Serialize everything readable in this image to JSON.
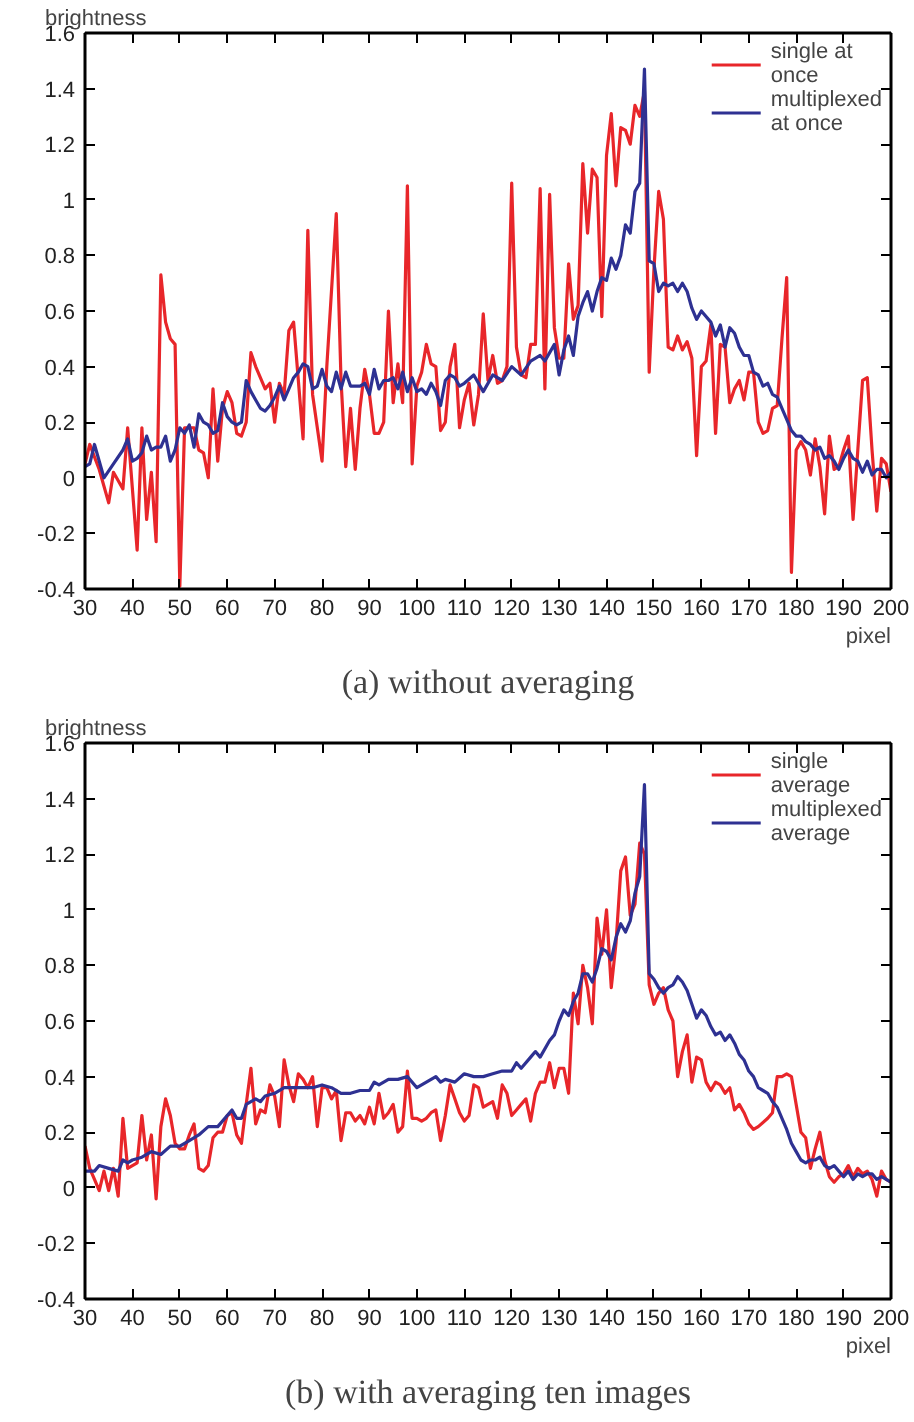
{
  "chart_data": [
    {
      "type": "line",
      "title": "(a) without averaging",
      "xlabel": "pixel",
      "ylabel": "brightness",
      "xlim": [
        30,
        200
      ],
      "ylim": [
        -0.4,
        1.6
      ],
      "xticks": [
        30,
        40,
        50,
        60,
        70,
        80,
        90,
        100,
        110,
        120,
        130,
        140,
        150,
        160,
        170,
        180,
        190,
        200
      ],
      "yticks": [
        -0.4,
        -0.2,
        0,
        0.2,
        0.4,
        0.6,
        0.8,
        1,
        1.2,
        1.4,
        1.6
      ],
      "grid": false,
      "legend": "top right",
      "marker": "none",
      "line_style": "solid",
      "series": [
        {
          "name": "single at once",
          "color": "#e8262a",
          "x": [
            30,
            31,
            33,
            35,
            36,
            38,
            39,
            41,
            42,
            43,
            44,
            45,
            46,
            47,
            48,
            49,
            50,
            51,
            53,
            54,
            55,
            56,
            57,
            58,
            59,
            60,
            61,
            62,
            63,
            64,
            65,
            66,
            68,
            69,
            70,
            71,
            72,
            73,
            74,
            76,
            77,
            78,
            80,
            81,
            83,
            84,
            85,
            86,
            87,
            88,
            89,
            90,
            91,
            92,
            93,
            94,
            95,
            96,
            97,
            98,
            99,
            100,
            101,
            102,
            103,
            104,
            105,
            106,
            107,
            108,
            109,
            110,
            111,
            112,
            113,
            114,
            115,
            116,
            117,
            118,
            119,
            120,
            121,
            122,
            123,
            124,
            125,
            126,
            127,
            128,
            129,
            130,
            131,
            132,
            133,
            134,
            135,
            136,
            137,
            138,
            139,
            140,
            141,
            142,
            143,
            144,
            145,
            146,
            147,
            148,
            149,
            150,
            151,
            152,
            153,
            154,
            155,
            156,
            157,
            158,
            159,
            160,
            161,
            162,
            163,
            164,
            165,
            166,
            167,
            168,
            169,
            170,
            171,
            172,
            173,
            174,
            175,
            176,
            177,
            178,
            179,
            180,
            181,
            182,
            183,
            184,
            185,
            186,
            187,
            188,
            189,
            190,
            191,
            192,
            193,
            194,
            195,
            196,
            197,
            198,
            199,
            200
          ],
          "values": [
            0.05,
            0.12,
            0.03,
            -0.09,
            0.02,
            -0.04,
            0.18,
            -0.26,
            0.18,
            -0.15,
            0.02,
            -0.23,
            0.73,
            0.56,
            0.5,
            0.48,
            -0.39,
            0.18,
            0.18,
            0.1,
            0.09,
            0.0,
            0.32,
            0.06,
            0.25,
            0.31,
            0.27,
            0.16,
            0.15,
            0.2,
            0.45,
            0.4,
            0.32,
            0.34,
            0.2,
            0.34,
            0.3,
            0.53,
            0.56,
            0.14,
            0.89,
            0.3,
            0.06,
            0.4,
            0.95,
            0.35,
            0.04,
            0.25,
            0.03,
            0.25,
            0.39,
            0.3,
            0.16,
            0.16,
            0.2,
            0.6,
            0.27,
            0.41,
            0.27,
            1.05,
            0.05,
            0.33,
            0.38,
            0.48,
            0.41,
            0.4,
            0.17,
            0.2,
            0.4,
            0.48,
            0.18,
            0.28,
            0.34,
            0.19,
            0.3,
            0.59,
            0.35,
            0.44,
            0.34,
            0.35,
            0.4,
            1.06,
            0.47,
            0.37,
            0.36,
            0.48,
            0.48,
            1.04,
            0.32,
            1.02,
            0.54,
            0.43,
            0.43,
            0.77,
            0.57,
            0.62,
            1.13,
            0.88,
            1.11,
            1.08,
            0.58,
            1.16,
            1.31,
            1.05,
            1.26,
            1.25,
            1.2,
            1.34,
            1.3,
            1.39,
            0.38,
            0.75,
            1.03,
            0.93,
            0.47,
            0.46,
            0.51,
            0.46,
            0.49,
            0.43,
            0.08,
            0.4,
            0.42,
            0.55,
            0.16,
            0.48,
            0.47,
            0.27,
            0.32,
            0.35,
            0.28,
            0.38,
            0.38,
            0.2,
            0.16,
            0.17,
            0.25,
            0.26,
            0.5,
            0.72,
            -0.34,
            0.1,
            0.13,
            0.1,
            0.01,
            0.14,
            0.04,
            -0.13,
            0.15,
            0.03,
            0.04,
            0.1,
            0.15,
            -0.15,
            0.1,
            0.35,
            0.36,
            0.1,
            -0.12,
            0.07,
            0.05,
            -0.05
          ]
        },
        {
          "name": "multiplexed at once",
          "color": "#2e3192",
          "x": [
            30,
            31,
            32,
            34,
            36,
            38,
            39,
            40,
            41,
            42,
            43,
            44,
            45,
            46,
            47,
            48,
            49,
            50,
            51,
            52,
            53,
            54,
            55,
            56,
            57,
            58,
            59,
            60,
            61,
            62,
            63,
            64,
            65,
            66,
            67,
            68,
            69,
            70,
            71,
            72,
            73,
            74,
            75,
            76,
            77,
            78,
            79,
            80,
            81,
            82,
            83,
            84,
            85,
            86,
            88,
            89,
            90,
            91,
            92,
            93,
            94,
            95,
            96,
            97,
            98,
            99,
            100,
            101,
            102,
            103,
            104,
            105,
            106,
            107,
            108,
            109,
            110,
            112,
            114,
            116,
            118,
            120,
            122,
            124,
            126,
            127,
            129,
            130,
            131,
            132,
            133,
            134,
            135,
            136,
            137,
            138,
            139,
            140,
            141,
            142,
            143,
            144,
            145,
            146,
            147,
            148,
            149,
            150,
            151,
            152,
            153,
            154,
            155,
            156,
            157,
            158,
            159,
            160,
            162,
            163,
            164,
            165,
            166,
            167,
            168,
            169,
            170,
            171,
            172,
            173,
            174,
            175,
            176,
            177,
            178,
            179,
            180,
            181,
            182,
            183,
            184,
            185,
            186,
            187,
            188,
            189,
            190,
            191,
            192,
            193,
            194,
            195,
            196,
            197,
            198,
            199,
            200
          ],
          "values": [
            0.04,
            0.05,
            0.12,
            0.0,
            0.05,
            0.1,
            0.14,
            0.06,
            0.07,
            0.09,
            0.15,
            0.1,
            0.11,
            0.11,
            0.15,
            0.06,
            0.1,
            0.18,
            0.16,
            0.19,
            0.11,
            0.23,
            0.2,
            0.19,
            0.16,
            0.17,
            0.27,
            0.22,
            0.2,
            0.19,
            0.2,
            0.35,
            0.31,
            0.28,
            0.25,
            0.24,
            0.26,
            0.29,
            0.33,
            0.28,
            0.32,
            0.36,
            0.38,
            0.41,
            0.4,
            0.32,
            0.33,
            0.39,
            0.33,
            0.31,
            0.38,
            0.32,
            0.38,
            0.33,
            0.33,
            0.34,
            0.3,
            0.39,
            0.32,
            0.35,
            0.35,
            0.36,
            0.32,
            0.38,
            0.31,
            0.36,
            0.31,
            0.32,
            0.3,
            0.34,
            0.31,
            0.26,
            0.35,
            0.37,
            0.36,
            0.33,
            0.34,
            0.37,
            0.31,
            0.37,
            0.35,
            0.4,
            0.37,
            0.42,
            0.44,
            0.42,
            0.48,
            0.37,
            0.46,
            0.51,
            0.44,
            0.58,
            0.63,
            0.67,
            0.6,
            0.67,
            0.72,
            0.71,
            0.79,
            0.75,
            0.8,
            0.91,
            0.88,
            1.03,
            1.06,
            1.47,
            0.78,
            0.77,
            0.67,
            0.7,
            0.69,
            0.7,
            0.67,
            0.7,
            0.67,
            0.61,
            0.57,
            0.6,
            0.56,
            0.51,
            0.55,
            0.47,
            0.54,
            0.52,
            0.47,
            0.44,
            0.44,
            0.38,
            0.37,
            0.33,
            0.34,
            0.3,
            0.29,
            0.25,
            0.21,
            0.17,
            0.15,
            0.15,
            0.13,
            0.12,
            0.1,
            0.11,
            0.07,
            0.08,
            0.06,
            0.03,
            0.07,
            0.1,
            0.07,
            0.06,
            0.02,
            0.06,
            0.01,
            0.03,
            0.03,
            0.0,
            0.02
          ]
        }
      ]
    },
    {
      "type": "line",
      "title": "(b) with averaging ten images",
      "xlabel": "pixel",
      "ylabel": "brightness",
      "xlim": [
        30,
        200
      ],
      "ylim": [
        -0.4,
        1.6
      ],
      "xticks": [
        30,
        40,
        50,
        60,
        70,
        80,
        90,
        100,
        110,
        120,
        130,
        140,
        150,
        160,
        170,
        180,
        190,
        200
      ],
      "yticks": [
        -0.4,
        -0.2,
        0,
        0.2,
        0.4,
        0.6,
        0.8,
        1,
        1.2,
        1.4,
        1.6
      ],
      "grid": false,
      "legend": "top right",
      "marker": "none",
      "line_style": "solid",
      "series": [
        {
          "name": "single average",
          "color": "#e8262a",
          "x": [
            30,
            31,
            32,
            33,
            34,
            35,
            36,
            37,
            38,
            39,
            40,
            41,
            42,
            43,
            44,
            45,
            46,
            47,
            48,
            49,
            50,
            51,
            52,
            53,
            54,
            55,
            56,
            57,
            58,
            59,
            60,
            61,
            62,
            63,
            64,
            65,
            66,
            67,
            68,
            69,
            70,
            71,
            72,
            73,
            74,
            75,
            76,
            77,
            78,
            79,
            80,
            81,
            82,
            83,
            84,
            85,
            86,
            87,
            88,
            89,
            90,
            91,
            92,
            93,
            94,
            95,
            96,
            97,
            98,
            99,
            100,
            101,
            102,
            103,
            104,
            105,
            106,
            107,
            108,
            109,
            110,
            111,
            112,
            113,
            114,
            115,
            116,
            117,
            118,
            119,
            120,
            121,
            122,
            123,
            124,
            125,
            126,
            127,
            128,
            129,
            130,
            131,
            132,
            133,
            134,
            135,
            136,
            137,
            138,
            139,
            140,
            141,
            142,
            143,
            144,
            145,
            146,
            147,
            148,
            149,
            150,
            151,
            152,
            153,
            154,
            155,
            156,
            157,
            158,
            159,
            160,
            161,
            162,
            163,
            164,
            165,
            166,
            167,
            168,
            169,
            170,
            171,
            172,
            174,
            175,
            176,
            177,
            178,
            179,
            180,
            181,
            182,
            183,
            184,
            185,
            186,
            187,
            188,
            189,
            190,
            191,
            192,
            193,
            194,
            195,
            196,
            197,
            198,
            199,
            200
          ],
          "values": [
            0.15,
            0.07,
            0.03,
            -0.01,
            0.06,
            -0.01,
            0.07,
            -0.03,
            0.25,
            0.07,
            0.08,
            0.09,
            0.26,
            0.1,
            0.19,
            -0.04,
            0.22,
            0.32,
            0.26,
            0.16,
            0.14,
            0.14,
            0.19,
            0.23,
            0.07,
            0.06,
            0.08,
            0.18,
            0.2,
            0.2,
            0.26,
            0.27,
            0.19,
            0.16,
            0.3,
            0.43,
            0.23,
            0.28,
            0.27,
            0.37,
            0.33,
            0.22,
            0.46,
            0.37,
            0.31,
            0.41,
            0.39,
            0.36,
            0.4,
            0.22,
            0.36,
            0.36,
            0.32,
            0.35,
            0.17,
            0.27,
            0.27,
            0.24,
            0.26,
            0.23,
            0.29,
            0.23,
            0.34,
            0.25,
            0.27,
            0.3,
            0.2,
            0.22,
            0.42,
            0.25,
            0.25,
            0.24,
            0.25,
            0.27,
            0.28,
            0.17,
            0.26,
            0.37,
            0.32,
            0.27,
            0.24,
            0.26,
            0.37,
            0.36,
            0.29,
            0.3,
            0.31,
            0.25,
            0.37,
            0.34,
            0.26,
            0.28,
            0.3,
            0.32,
            0.24,
            0.34,
            0.38,
            0.38,
            0.45,
            0.36,
            0.43,
            0.43,
            0.34,
            0.7,
            0.59,
            0.8,
            0.72,
            0.59,
            0.97,
            0.84,
            1.0,
            0.72,
            0.88,
            1.14,
            1.19,
            0.98,
            1.02,
            1.24,
            1.2,
            0.73,
            0.66,
            0.7,
            0.72,
            0.64,
            0.6,
            0.4,
            0.49,
            0.55,
            0.38,
            0.47,
            0.46,
            0.38,
            0.35,
            0.38,
            0.37,
            0.34,
            0.36,
            0.28,
            0.3,
            0.27,
            0.23,
            0.21,
            0.22,
            0.25,
            0.27,
            0.4,
            0.4,
            0.41,
            0.4,
            0.3,
            0.2,
            0.18,
            0.07,
            0.14,
            0.2,
            0.1,
            0.04,
            0.02,
            0.04,
            0.05,
            0.08,
            0.04,
            0.07,
            0.05,
            0.06,
            0.03,
            -0.03,
            0.06,
            0.03,
            0.02
          ]
        },
        {
          "name": "multiplexed average",
          "color": "#2e3192",
          "x": [
            30,
            32,
            33,
            35,
            37,
            38,
            39,
            40,
            42,
            44,
            46,
            48,
            50,
            52,
            54,
            56,
            58,
            60,
            61,
            62,
            63,
            64,
            66,
            67,
            68,
            70,
            72,
            74,
            76,
            78,
            80,
            82,
            84,
            86,
            88,
            90,
            91,
            92,
            94,
            96,
            98,
            100,
            102,
            104,
            105,
            106,
            108,
            110,
            112,
            114,
            116,
            118,
            120,
            121,
            122,
            124,
            125,
            126,
            128,
            129,
            130,
            131,
            132,
            133,
            134,
            135,
            136,
            137,
            138,
            139,
            140,
            141,
            142,
            143,
            144,
            145,
            146,
            147,
            148,
            149,
            150,
            151,
            152,
            153,
            154,
            155,
            156,
            157,
            158,
            159,
            160,
            161,
            162,
            163,
            164,
            165,
            166,
            167,
            168,
            169,
            170,
            171,
            172,
            173,
            174,
            175,
            176,
            177,
            178,
            179,
            180,
            181,
            182,
            183,
            184,
            185,
            186,
            187,
            188,
            189,
            190,
            191,
            192,
            193,
            194,
            195,
            196,
            197,
            198,
            199,
            200
          ],
          "values": [
            0.06,
            0.06,
            0.08,
            0.07,
            0.06,
            0.1,
            0.09,
            0.1,
            0.11,
            0.13,
            0.12,
            0.15,
            0.15,
            0.17,
            0.19,
            0.22,
            0.22,
            0.26,
            0.28,
            0.25,
            0.25,
            0.3,
            0.32,
            0.31,
            0.33,
            0.34,
            0.36,
            0.36,
            0.36,
            0.36,
            0.37,
            0.36,
            0.34,
            0.34,
            0.35,
            0.35,
            0.38,
            0.37,
            0.39,
            0.39,
            0.4,
            0.36,
            0.38,
            0.4,
            0.38,
            0.39,
            0.38,
            0.41,
            0.4,
            0.4,
            0.41,
            0.42,
            0.42,
            0.45,
            0.43,
            0.47,
            0.49,
            0.47,
            0.53,
            0.55,
            0.6,
            0.64,
            0.62,
            0.67,
            0.7,
            0.77,
            0.77,
            0.74,
            0.79,
            0.86,
            0.85,
            0.82,
            0.9,
            0.95,
            0.92,
            0.96,
            1.06,
            1.12,
            1.45,
            0.77,
            0.75,
            0.72,
            0.7,
            0.72,
            0.73,
            0.76,
            0.74,
            0.71,
            0.66,
            0.61,
            0.64,
            0.62,
            0.58,
            0.55,
            0.56,
            0.53,
            0.55,
            0.52,
            0.48,
            0.46,
            0.42,
            0.4,
            0.36,
            0.35,
            0.34,
            0.31,
            0.29,
            0.25,
            0.21,
            0.16,
            0.13,
            0.1,
            0.09,
            0.1,
            0.1,
            0.11,
            0.08,
            0.07,
            0.08,
            0.06,
            0.04,
            0.06,
            0.03,
            0.05,
            0.04,
            0.05,
            0.05,
            0.03,
            0.04,
            0.03,
            0.02
          ]
        }
      ]
    }
  ]
}
